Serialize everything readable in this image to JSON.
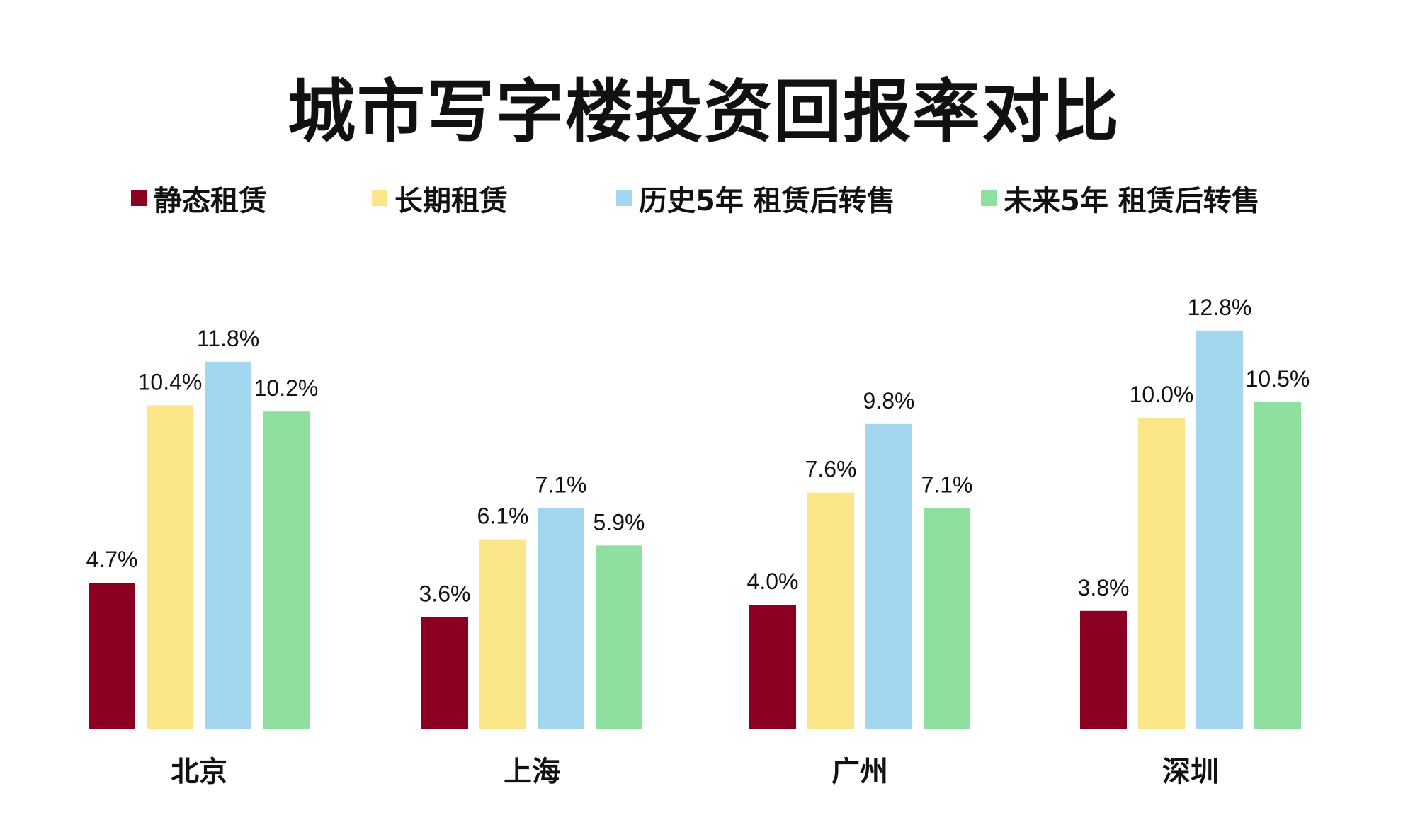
{
  "chart_data": {
    "type": "bar",
    "title": "城市写字楼投资回报率对比",
    "categories": [
      "北京",
      "上海",
      "广州",
      "深圳"
    ],
    "series": [
      {
        "name": "静态租赁",
        "color": "#8b0020",
        "values": [
          4.7,
          3.6,
          4.0,
          3.8
        ],
        "labels": [
          "4.7%",
          "3.6%",
          "4.0%",
          "3.8%"
        ]
      },
      {
        "name": "长期租赁",
        "color": "#fbe689",
        "values": [
          10.4,
          6.1,
          7.6,
          10.0
        ],
        "labels": [
          "10.4%",
          "6.1%",
          "7.6%",
          "10.0%"
        ]
      },
      {
        "name": "历史5年 租赁后转售",
        "color": "#a4d6f0",
        "values": [
          11.8,
          7.1,
          9.8,
          12.8
        ],
        "labels": [
          "11.8%",
          "7.1%",
          "9.8%",
          "12.8%"
        ]
      },
      {
        "name": "未来5年 租赁后转售",
        "color": "#8fdf9e",
        "values": [
          10.2,
          5.9,
          7.1,
          10.5
        ],
        "labels": [
          "10.2%",
          "5.9%",
          "7.1%",
          "10.5%"
        ]
      }
    ],
    "value_unit": "%",
    "xlabel": "",
    "ylabel": "",
    "grid": false,
    "y_axis_visible": false,
    "ylim": [
      0,
      14
    ],
    "legend_position": "top"
  }
}
